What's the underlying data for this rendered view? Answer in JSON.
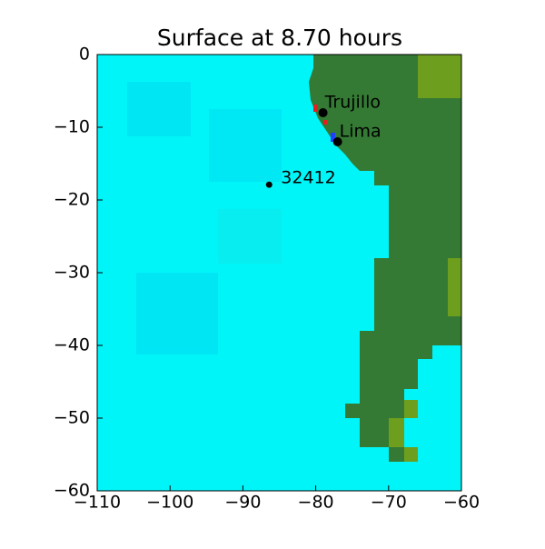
{
  "chart_data": {
    "type": "map",
    "title": "Surface at 8.70 hours",
    "xlim": [
      -110,
      -60
    ],
    "ylim": [
      -60,
      0
    ],
    "xticks": [
      {
        "value": -110,
        "label": "−110"
      },
      {
        "value": -100,
        "label": "−100"
      },
      {
        "value": -90,
        "label": "−90"
      },
      {
        "value": -80,
        "label": "−80"
      },
      {
        "value": -70,
        "label": "−70"
      },
      {
        "value": -60,
        "label": "−60"
      }
    ],
    "yticks": [
      0,
      {
        "value": -10,
        "label": "−10"
      },
      {
        "value": -20,
        "label": "−20"
      },
      {
        "value": -30,
        "label": "−30"
      },
      {
        "value": -40,
        "label": "−40"
      },
      {
        "value": -50,
        "label": "−50"
      },
      {
        "value": -60,
        "label": "−60"
      }
    ],
    "points": {
      "names": [
        "Trujillo",
        "Lima",
        "32412"
      ],
      "x": [
        -79,
        -77,
        -86.4
      ],
      "y": [
        -8,
        -12,
        -17.9
      ],
      "color": "#000000"
    }
  }
}
